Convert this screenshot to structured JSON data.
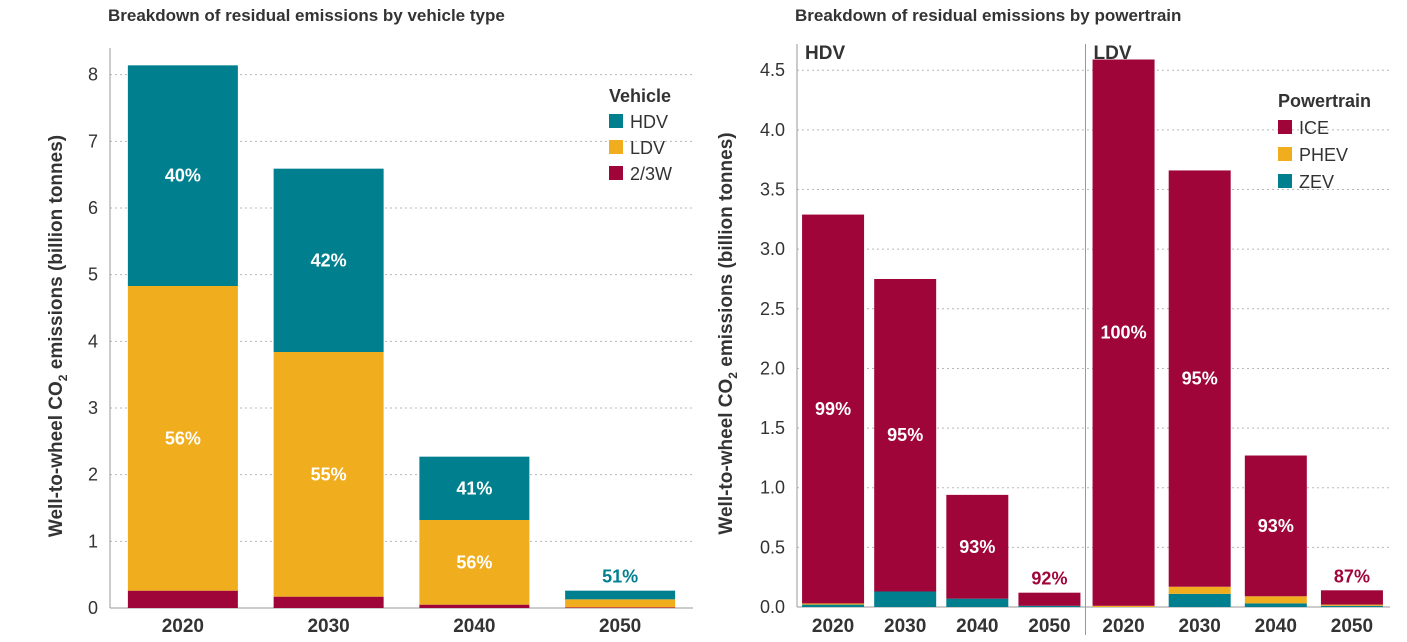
{
  "colors": {
    "HDV": "#00808f",
    "LDV": "#f0ad1e",
    "2/3W": "#a0053a",
    "ICE": "#a0053a",
    "PHEV": "#f0ad1e",
    "ZEV": "#00808f"
  },
  "chart_data": [
    {
      "type": "bar",
      "stacked": true,
      "title": "Breakdown of residual emissions by vehicle type",
      "ylabel": "Well-to-wheel CO₂ emissions (billion tonnes)",
      "ylabel_main": "Well-to-wheel CO",
      "ylabel_sub": "2",
      "ylabel_tail": " emissions (billion tonnes)",
      "xlabel": "",
      "ylim": [
        0,
        8.4
      ],
      "yticks": [
        "0",
        "1",
        "2",
        "3",
        "4",
        "5",
        "6",
        "7",
        "8"
      ],
      "categories": [
        "2020",
        "2030",
        "2040",
        "2050"
      ],
      "legend_title": "Vehicle",
      "legend": [
        "HDV",
        "LDV",
        "2/3W"
      ],
      "series": [
        {
          "name": "2/3W",
          "values": [
            0.26,
            0.17,
            0.05,
            0.01
          ]
        },
        {
          "name": "LDV",
          "values": [
            4.57,
            3.67,
            1.27,
            0.12
          ]
        },
        {
          "name": "HDV",
          "values": [
            3.31,
            2.75,
            0.95,
            0.13
          ]
        }
      ],
      "annotations": [
        {
          "category": "2020",
          "series": "HDV",
          "text": "40%"
        },
        {
          "category": "2020",
          "series": "LDV",
          "text": "56%"
        },
        {
          "category": "2030",
          "series": "HDV",
          "text": "42%"
        },
        {
          "category": "2030",
          "series": "LDV",
          "text": "55%"
        },
        {
          "category": "2040",
          "series": "HDV",
          "text": "41%"
        },
        {
          "category": "2040",
          "series": "LDV",
          "text": "56%"
        },
        {
          "category": "2050",
          "series": "HDV",
          "text": "51%",
          "outside": true
        }
      ]
    },
    {
      "type": "bar",
      "stacked": true,
      "title": "Breakdown of residual emissions by powertrain",
      "ylabel": "Well-to-wheel CO₂ emissions (billion tonnes)",
      "ylabel_main": "Well-to-wheel CO",
      "ylabel_sub": "2",
      "ylabel_tail": " emissions (billion tonnes)",
      "xlabel": "",
      "ylim": [
        0,
        4.72
      ],
      "yticks": [
        "0.0",
        "0.5",
        "1.0",
        "1.5",
        "2.0",
        "2.5",
        "3.0",
        "3.5",
        "4.0",
        "4.5"
      ],
      "panels": [
        {
          "label": "HDV",
          "categories": [
            "2020",
            "2030",
            "2040",
            "2050"
          ],
          "series": [
            {
              "name": "ZEV",
              "values": [
                0.02,
                0.13,
                0.07,
                0.01
              ]
            },
            {
              "name": "PHEV",
              "values": [
                0.01,
                0.0,
                0.0,
                0.0
              ]
            },
            {
              "name": "ICE",
              "values": [
                3.26,
                2.62,
                0.87,
                0.11
              ]
            }
          ],
          "annotations": [
            {
              "category": "2020",
              "text": "99%"
            },
            {
              "category": "2030",
              "text": "95%"
            },
            {
              "category": "2040",
              "text": "93%"
            },
            {
              "category": "2050",
              "text": "92%",
              "outside": true
            }
          ]
        },
        {
          "label": "LDV",
          "categories": [
            "2020",
            "2030",
            "2040",
            "2050"
          ],
          "series": [
            {
              "name": "ZEV",
              "values": [
                0.0,
                0.11,
                0.03,
                0.01
              ]
            },
            {
              "name": "PHEV",
              "values": [
                0.01,
                0.06,
                0.06,
                0.01
              ]
            },
            {
              "name": "ICE",
              "values": [
                4.58,
                3.49,
                1.18,
                0.12
              ]
            }
          ],
          "annotations": [
            {
              "category": "2020",
              "text": "100%"
            },
            {
              "category": "2030",
              "text": "95%"
            },
            {
              "category": "2040",
              "text": "93%"
            },
            {
              "category": "2050",
              "text": "87%",
              "outside": true
            }
          ]
        }
      ],
      "legend_title": "Powertrain",
      "legend": [
        "ICE",
        "PHEV",
        "ZEV"
      ]
    }
  ]
}
